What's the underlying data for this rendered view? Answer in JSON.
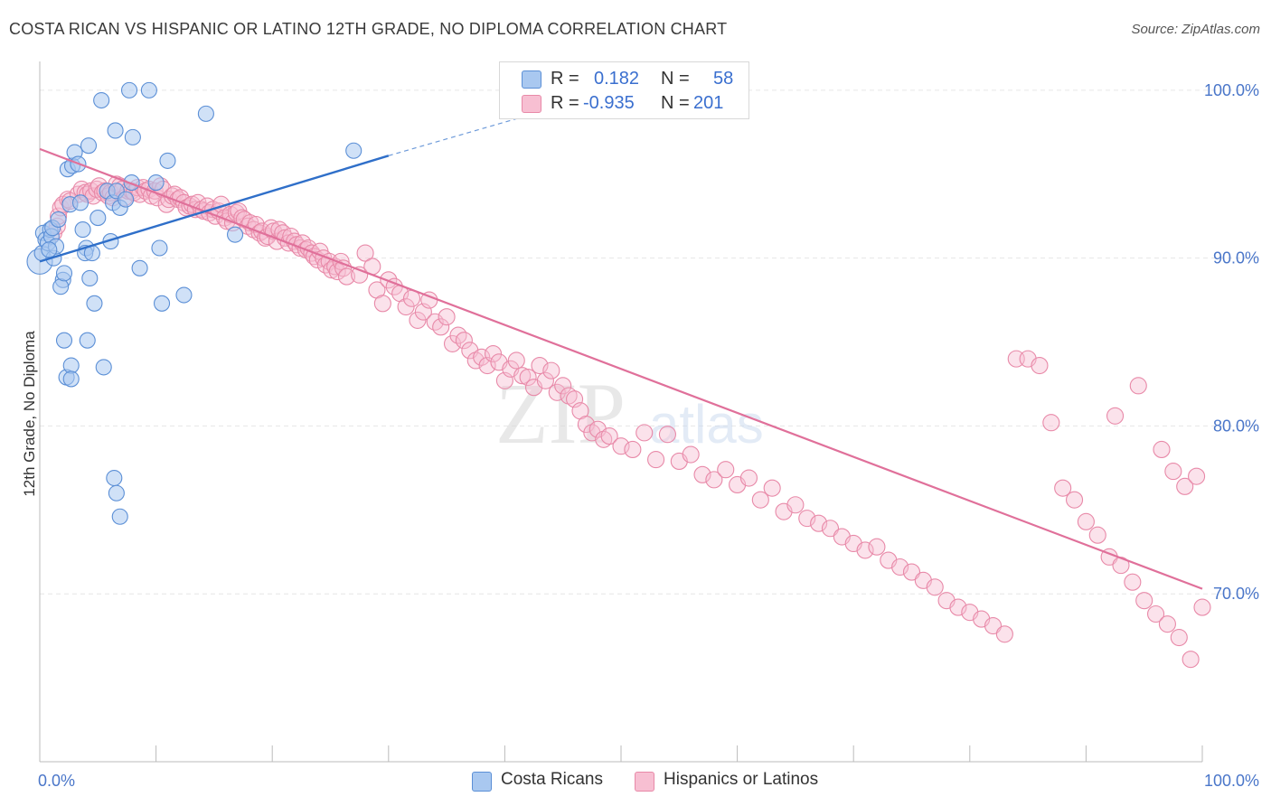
{
  "title": "COSTA RICAN VS HISPANIC OR LATINO 12TH GRADE, NO DIPLOMA CORRELATION CHART",
  "source": "Source: ZipAtlas.com",
  "watermark": {
    "zip": "ZIP",
    "atlas": "atlas"
  },
  "legend": {
    "r_label": "R =",
    "n_label": "N =",
    "series": [
      {
        "r": "0.182",
        "n": "58"
      },
      {
        "r": "-0.935",
        "n": "201"
      }
    ]
  },
  "bottom_legend": [
    "Costa Ricans",
    "Hispanics or Latinos"
  ],
  "colors": {
    "blue_fill": "#a9c8f0",
    "blue_stroke": "#5b8fd6",
    "blue_line": "#2f6fc9",
    "pink_fill": "#f7bfd2",
    "pink_stroke": "#e889a8",
    "pink_line": "#e0709a",
    "tick_text": "#4a76c9",
    "grid": "#e6e6e6"
  },
  "chart_data": {
    "type": "scatter",
    "title": "COSTA RICAN VS HISPANIC OR LATINO 12TH GRADE, NO DIPLOMA CORRELATION CHART",
    "xlabel": "",
    "ylabel": "12th Grade, No Diploma",
    "xlim": [
      0,
      100
    ],
    "ylim": [
      60,
      101.5
    ],
    "x_tick_labels": [
      "0.0%",
      "100.0%"
    ],
    "y_ticks": [
      70,
      80,
      90,
      100
    ],
    "y_tick_labels": [
      "70.0%",
      "80.0%",
      "90.0%",
      "100.0%"
    ],
    "grid": true,
    "series": [
      {
        "name": "Costa Ricans",
        "r": 0.182,
        "n": 58,
        "trend": {
          "x0": 0,
          "y0": 89.8,
          "x1": 30,
          "y1": 96.1,
          "dash_to_x": 42,
          "dash_to_y": 98.5
        },
        "points": [
          [
            0.2,
            90.3
          ],
          [
            0.3,
            91.5
          ],
          [
            0.5,
            91.1
          ],
          [
            0.7,
            90.9
          ],
          [
            0.9,
            91.7
          ],
          [
            1.0,
            91.3
          ],
          [
            1.2,
            90.0
          ],
          [
            1.4,
            90.7
          ],
          [
            0.8,
            90.5
          ],
          [
            1.1,
            91.8
          ],
          [
            1.6,
            92.3
          ],
          [
            2.0,
            88.7
          ],
          [
            1.8,
            88.3
          ],
          [
            2.1,
            89.1
          ],
          [
            2.6,
            93.2
          ],
          [
            2.4,
            95.3
          ],
          [
            2.8,
            95.5
          ],
          [
            3.0,
            96.3
          ],
          [
            3.5,
            93.3
          ],
          [
            3.3,
            95.6
          ],
          [
            3.7,
            91.7
          ],
          [
            4.0,
            90.6
          ],
          [
            3.9,
            90.3
          ],
          [
            4.2,
            96.7
          ],
          [
            4.3,
            88.8
          ],
          [
            4.5,
            90.3
          ],
          [
            4.7,
            87.3
          ],
          [
            5.0,
            92.4
          ],
          [
            5.3,
            99.4
          ],
          [
            5.8,
            94.0
          ],
          [
            6.1,
            91.0
          ],
          [
            6.3,
            93.3
          ],
          [
            6.5,
            97.6
          ],
          [
            6.6,
            94.0
          ],
          [
            6.9,
            93.0
          ],
          [
            7.4,
            93.5
          ],
          [
            7.9,
            94.5
          ],
          [
            7.7,
            100.0
          ],
          [
            8.0,
            97.2
          ],
          [
            8.6,
            89.4
          ],
          [
            9.4,
            100.0
          ],
          [
            10.0,
            94.5
          ],
          [
            10.3,
            90.6
          ],
          [
            10.5,
            87.3
          ],
          [
            11.0,
            95.8
          ],
          [
            12.4,
            87.8
          ],
          [
            14.3,
            98.6
          ],
          [
            16.8,
            91.4
          ],
          [
            27.0,
            96.4
          ],
          [
            2.1,
            85.1
          ],
          [
            4.1,
            85.1
          ],
          [
            2.3,
            82.9
          ],
          [
            2.7,
            83.6
          ],
          [
            2.7,
            82.8
          ],
          [
            5.5,
            83.5
          ],
          [
            6.4,
            76.9
          ],
          [
            6.6,
            76.0
          ],
          [
            6.9,
            74.6
          ]
        ]
      },
      {
        "name": "Hispanics or Latinos",
        "r": -0.935,
        "n": 201,
        "trend": {
          "x0": 0,
          "y0": 96.5,
          "x1": 100,
          "y1": 70.3
        },
        "points": [
          [
            1.2,
            91.5
          ],
          [
            1.5,
            91.9
          ],
          [
            1.6,
            92.5
          ],
          [
            1.8,
            93.0
          ],
          [
            2.0,
            93.2
          ],
          [
            2.4,
            93.5
          ],
          [
            2.6,
            93.4
          ],
          [
            3.3,
            93.8
          ],
          [
            3.6,
            94.1
          ],
          [
            3.9,
            93.9
          ],
          [
            4.1,
            93.8
          ],
          [
            4.4,
            94.0
          ],
          [
            4.6,
            93.7
          ],
          [
            4.9,
            94.1
          ],
          [
            5.1,
            94.3
          ],
          [
            5.4,
            93.9
          ],
          [
            5.6,
            94.0
          ],
          [
            5.9,
            93.7
          ],
          [
            6.1,
            93.9
          ],
          [
            6.3,
            93.6
          ],
          [
            6.6,
            94.4
          ],
          [
            6.9,
            94.3
          ],
          [
            7.1,
            94.1
          ],
          [
            7.3,
            93.6
          ],
          [
            7.6,
            94.0
          ],
          [
            7.9,
            94.0
          ],
          [
            8.1,
            93.9
          ],
          [
            8.4,
            94.2
          ],
          [
            8.6,
            93.8
          ],
          [
            8.9,
            94.2
          ],
          [
            9.1,
            94.0
          ],
          [
            9.4,
            94.1
          ],
          [
            9.6,
            93.7
          ],
          [
            9.9,
            94.0
          ],
          [
            10.1,
            93.6
          ],
          [
            10.4,
            94.3
          ],
          [
            10.6,
            94.1
          ],
          [
            10.9,
            93.2
          ],
          [
            11.1,
            93.5
          ],
          [
            11.4,
            93.7
          ],
          [
            11.6,
            93.8
          ],
          [
            11.9,
            93.5
          ],
          [
            12.1,
            93.6
          ],
          [
            12.4,
            93.3
          ],
          [
            12.6,
            93.0
          ],
          [
            12.9,
            93.1
          ],
          [
            13.1,
            93.2
          ],
          [
            13.4,
            92.9
          ],
          [
            13.6,
            93.3
          ],
          [
            13.9,
            92.9
          ],
          [
            14.1,
            92.8
          ],
          [
            14.4,
            93.1
          ],
          [
            14.6,
            92.7
          ],
          [
            14.9,
            92.9
          ],
          [
            15.1,
            92.5
          ],
          [
            15.4,
            92.8
          ],
          [
            15.6,
            93.2
          ],
          [
            15.9,
            92.4
          ],
          [
            16.1,
            92.2
          ],
          [
            16.4,
            92.6
          ],
          [
            16.6,
            92.1
          ],
          [
            16.9,
            92.7
          ],
          [
            17.1,
            92.8
          ],
          [
            17.4,
            92.4
          ],
          [
            17.6,
            92.3
          ],
          [
            17.9,
            91.9
          ],
          [
            18.1,
            92.1
          ],
          [
            18.4,
            91.7
          ],
          [
            18.6,
            92.0
          ],
          [
            18.9,
            91.5
          ],
          [
            19.1,
            91.6
          ],
          [
            19.4,
            91.2
          ],
          [
            19.6,
            91.3
          ],
          [
            19.9,
            91.8
          ],
          [
            20.1,
            91.6
          ],
          [
            20.4,
            91.0
          ],
          [
            20.6,
            91.7
          ],
          [
            20.9,
            91.5
          ],
          [
            21.1,
            91.2
          ],
          [
            21.4,
            90.9
          ],
          [
            21.6,
            91.3
          ],
          [
            21.9,
            91.0
          ],
          [
            22.1,
            90.8
          ],
          [
            22.4,
            90.6
          ],
          [
            22.6,
            90.9
          ],
          [
            22.9,
            90.5
          ],
          [
            23.1,
            90.6
          ],
          [
            23.4,
            90.3
          ],
          [
            23.6,
            90.1
          ],
          [
            23.9,
            89.9
          ],
          [
            24.1,
            90.4
          ],
          [
            24.4,
            90.0
          ],
          [
            24.6,
            89.6
          ],
          [
            24.9,
            89.8
          ],
          [
            25.1,
            89.3
          ],
          [
            25.4,
            89.5
          ],
          [
            25.6,
            89.2
          ],
          [
            25.9,
            89.8
          ],
          [
            26.1,
            89.4
          ],
          [
            26.4,
            88.9
          ],
          [
            27.5,
            89.0
          ],
          [
            28.0,
            90.3
          ],
          [
            28.6,
            89.5
          ],
          [
            29.0,
            88.1
          ],
          [
            29.5,
            87.3
          ],
          [
            30.0,
            88.7
          ],
          [
            30.5,
            88.3
          ],
          [
            31.0,
            87.9
          ],
          [
            31.5,
            87.1
          ],
          [
            32.0,
            87.6
          ],
          [
            32.5,
            86.3
          ],
          [
            33.0,
            86.8
          ],
          [
            33.5,
            87.5
          ],
          [
            34.0,
            86.2
          ],
          [
            34.5,
            85.9
          ],
          [
            35.0,
            86.5
          ],
          [
            35.5,
            84.9
          ],
          [
            36.0,
            85.4
          ],
          [
            36.5,
            85.1
          ],
          [
            37.0,
            84.5
          ],
          [
            37.5,
            83.9
          ],
          [
            38.0,
            84.1
          ],
          [
            38.5,
            83.6
          ],
          [
            39.0,
            84.3
          ],
          [
            39.5,
            83.8
          ],
          [
            40.0,
            82.7
          ],
          [
            40.5,
            83.4
          ],
          [
            41.0,
            83.9
          ],
          [
            41.5,
            83.0
          ],
          [
            42.0,
            82.9
          ],
          [
            42.5,
            82.3
          ],
          [
            43.0,
            83.6
          ],
          [
            43.5,
            82.7
          ],
          [
            44.0,
            83.3
          ],
          [
            44.5,
            82.0
          ],
          [
            45.0,
            82.4
          ],
          [
            45.5,
            81.8
          ],
          [
            46.0,
            81.6
          ],
          [
            46.5,
            80.9
          ],
          [
            47.0,
            80.1
          ],
          [
            47.5,
            79.6
          ],
          [
            48.0,
            79.8
          ],
          [
            48.5,
            79.2
          ],
          [
            49.0,
            79.4
          ],
          [
            50.0,
            78.8
          ],
          [
            51.0,
            78.6
          ],
          [
            52.0,
            79.6
          ],
          [
            53.0,
            78.0
          ],
          [
            54.0,
            79.5
          ],
          [
            55.0,
            77.9
          ],
          [
            56.0,
            78.3
          ],
          [
            57.0,
            77.1
          ],
          [
            58.0,
            76.8
          ],
          [
            59.0,
            77.4
          ],
          [
            60.0,
            76.5
          ],
          [
            61.0,
            76.9
          ],
          [
            62.0,
            75.6
          ],
          [
            63.0,
            76.3
          ],
          [
            64.0,
            74.9
          ],
          [
            65.0,
            75.3
          ],
          [
            66.0,
            74.5
          ],
          [
            67.0,
            74.2
          ],
          [
            68.0,
            73.9
          ],
          [
            69.0,
            73.4
          ],
          [
            70.0,
            73.0
          ],
          [
            71.0,
            72.6
          ],
          [
            72.0,
            72.8
          ],
          [
            73.0,
            72.0
          ],
          [
            74.0,
            71.6
          ],
          [
            75.0,
            71.3
          ],
          [
            76.0,
            70.8
          ],
          [
            77.0,
            70.4
          ],
          [
            78.0,
            69.6
          ],
          [
            79.0,
            69.2
          ],
          [
            80.0,
            68.9
          ],
          [
            81.0,
            68.5
          ],
          [
            82.0,
            68.1
          ],
          [
            83.0,
            67.6
          ],
          [
            84.0,
            84.0
          ],
          [
            85.0,
            84.0
          ],
          [
            86.0,
            83.6
          ],
          [
            87.0,
            80.2
          ],
          [
            88.0,
            76.3
          ],
          [
            89.0,
            75.6
          ],
          [
            90.0,
            74.3
          ],
          [
            91.0,
            73.5
          ],
          [
            92.0,
            72.2
          ],
          [
            93.0,
            71.7
          ],
          [
            94.0,
            70.7
          ],
          [
            95.0,
            69.6
          ],
          [
            96.0,
            68.8
          ],
          [
            97.0,
            68.2
          ],
          [
            98.0,
            67.4
          ],
          [
            99.0,
            66.1
          ],
          [
            100.0,
            69.2
          ],
          [
            92.5,
            80.6
          ],
          [
            94.5,
            82.4
          ],
          [
            96.5,
            78.6
          ],
          [
            97.5,
            77.3
          ],
          [
            98.5,
            76.4
          ],
          [
            99.5,
            77.0
          ]
        ]
      }
    ]
  }
}
